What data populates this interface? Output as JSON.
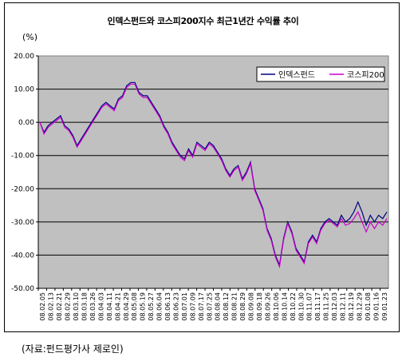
{
  "title": "인덱스펀드와 코스피200지수 최근1년간 수익률 추이",
  "unit_label": "(%)",
  "source_note": "(자료:펀드평가사 제로인)",
  "chart_data": {
    "type": "line",
    "title": "인덱스펀드와 코스피200지수 최근1년간 수익률 추이",
    "ylabel": "(%)",
    "xlabel": "",
    "ylim": [
      -50,
      20
    ],
    "yticks": [
      20,
      10,
      0,
      -10,
      -20,
      -30,
      -40,
      -50
    ],
    "ytick_labels": [
      "20.00",
      "10.00",
      "0.00",
      "-10.00",
      "-20.00",
      "-30.00",
      "-40.00",
      "-50.00"
    ],
    "x_tick_labels": [
      "08.02.05",
      "08.02.13",
      "08.02.21",
      "08.02.29",
      "08.03.10",
      "08.03.18",
      "08.03.26",
      "08.04.03",
      "08.04.11",
      "08.04.21",
      "08.04.29",
      "08.05.08",
      "08.05.19",
      "08.05.27",
      "08.06.04",
      "08.06.13",
      "08.06.23",
      "08.07.01",
      "08.07.09",
      "08.07.17",
      "08.07.25",
      "08.08.04",
      "08.08.12",
      "08.08.21",
      "08.08.29",
      "08.09.08",
      "08.09.18",
      "08.09.26",
      "08.10.06",
      "08.10.14",
      "08.10.22",
      "08.10.30",
      "08.11.07",
      "08.11.17",
      "08.11.25",
      "08.12.03",
      "08.12.11",
      "08.12.19",
      "08.12.29",
      "09.01.08",
      "09.01.16",
      "09.01.23"
    ],
    "grid": true,
    "background": "#c0c0c0",
    "legend_position": "top-right",
    "series": [
      {
        "name": "인덱스펀드",
        "color": "#000080",
        "values": [
          0,
          -3,
          -1,
          0,
          1,
          2,
          -1,
          -2,
          -4,
          -7,
          -5,
          -3,
          -1,
          1,
          3,
          5,
          6,
          5,
          4,
          7,
          8,
          11,
          12,
          12,
          9,
          8,
          8,
          6,
          4,
          2,
          -1,
          -3,
          -6,
          -8,
          -10,
          -11,
          -8,
          -10,
          -6,
          -7,
          -8,
          -6,
          -7,
          -9,
          -11,
          -14,
          -16,
          -14,
          -13,
          -17,
          -15,
          -12,
          -20,
          -23,
          -26,
          -32,
          -35,
          -40,
          -43,
          -35,
          -30,
          -33,
          -38,
          -40,
          -42,
          -36,
          -34,
          -36,
          -32,
          -30,
          -29,
          -30,
          -31,
          -28,
          -30,
          -29,
          -27,
          -24,
          -27,
          -31,
          -28,
          -30,
          -28,
          -29,
          -27
        ]
      },
      {
        "name": "코스피200",
        "color": "#cc00cc",
        "values": [
          0,
          -3.5,
          -1.5,
          -0.5,
          0.5,
          1.5,
          -1.5,
          -2.5,
          -4.5,
          -7.5,
          -5.5,
          -3.5,
          -1.5,
          0.5,
          2.5,
          4.5,
          5.5,
          4.5,
          3.5,
          6.5,
          7.5,
          10.5,
          11.5,
          11.5,
          8.5,
          7.5,
          7.5,
          5.5,
          3.5,
          1.5,
          -1.5,
          -3.5,
          -6.5,
          -8.5,
          -10.5,
          -11.5,
          -8.5,
          -10.5,
          -6.5,
          -7.5,
          -8.5,
          -6.5,
          -7.5,
          -9.5,
          -11.5,
          -14.5,
          -16.5,
          -14.5,
          -13.5,
          -17.5,
          -15.5,
          -12.5,
          -20.5,
          -23.5,
          -26.5,
          -32.5,
          -35.5,
          -40.5,
          -43.5,
          -35.5,
          -30.5,
          -33.5,
          -38.5,
          -40.5,
          -42.5,
          -36.5,
          -34.5,
          -36.5,
          -32.5,
          -30.5,
          -29.5,
          -30.5,
          -31.5,
          -29,
          -31,
          -30.5,
          -29,
          -27,
          -30,
          -33,
          -30,
          -32,
          -30,
          -31,
          -29
        ]
      }
    ]
  }
}
